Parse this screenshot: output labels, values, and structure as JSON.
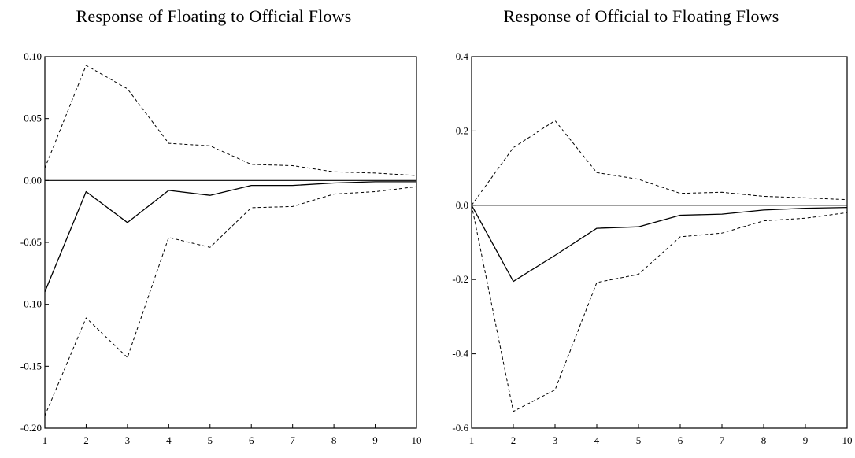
{
  "chart_data": [
    {
      "type": "line",
      "title": "Response of Floating to Official Flows",
      "xlabel": "",
      "ylabel": "",
      "x": [
        1,
        2,
        3,
        4,
        5,
        6,
        7,
        8,
        9,
        10
      ],
      "xticks": [
        "1",
        "2",
        "3",
        "4",
        "5",
        "6",
        "7",
        "8",
        "9",
        "10"
      ],
      "ylim": [
        -0.2,
        0.1
      ],
      "yticks": [
        0.1,
        0.05,
        0.0,
        -0.05,
        -0.1,
        -0.15,
        -0.2
      ],
      "ytick_labels": [
        "0.10",
        "0.05",
        "0.00",
        "-0.05",
        "-0.10",
        "-0.15",
        "-0.20"
      ],
      "grid": false,
      "zero_line": true,
      "series": [
        {
          "role": "response",
          "style": "solid",
          "values": [
            -0.09,
            -0.009,
            -0.034,
            -0.008,
            -0.012,
            -0.004,
            -0.004,
            -0.002,
            -0.001,
            -0.001
          ]
        },
        {
          "role": "upper band",
          "style": "dashed",
          "values": [
            0.01,
            0.093,
            0.074,
            0.03,
            0.028,
            0.013,
            0.012,
            0.007,
            0.006,
            0.004
          ]
        },
        {
          "role": "lower band",
          "style": "dashed",
          "values": [
            -0.19,
            -0.111,
            -0.143,
            -0.046,
            -0.054,
            -0.022,
            -0.021,
            -0.011,
            -0.009,
            -0.005
          ]
        }
      ]
    },
    {
      "type": "line",
      "title": "Response of Official to Floating Flows",
      "xlabel": "",
      "ylabel": "",
      "x": [
        1,
        2,
        3,
        4,
        5,
        6,
        7,
        8,
        9,
        10
      ],
      "xticks": [
        "1",
        "2",
        "3",
        "4",
        "5",
        "6",
        "7",
        "8",
        "9",
        "10"
      ],
      "ylim": [
        -0.6,
        0.4
      ],
      "yticks": [
        0.4,
        0.2,
        0.0,
        -0.2,
        -0.4,
        -0.6
      ],
      "ytick_labels": [
        "0.4",
        "0.2",
        "0.0",
        "-0.2",
        "-0.4",
        "-0.6"
      ],
      "grid": false,
      "zero_line": true,
      "series": [
        {
          "role": "response",
          "style": "solid",
          "values": [
            0.0,
            -0.205,
            -0.135,
            -0.062,
            -0.058,
            -0.027,
            -0.024,
            -0.013,
            -0.008,
            -0.006
          ]
        },
        {
          "role": "upper band",
          "style": "dashed",
          "values": [
            0.0,
            0.155,
            0.228,
            0.088,
            0.07,
            0.032,
            0.035,
            0.024,
            0.02,
            0.015
          ]
        },
        {
          "role": "lower band",
          "style": "dashed",
          "values": [
            0.0,
            -0.555,
            -0.497,
            -0.208,
            -0.186,
            -0.085,
            -0.075,
            -0.042,
            -0.035,
            -0.02
          ]
        }
      ]
    }
  ]
}
